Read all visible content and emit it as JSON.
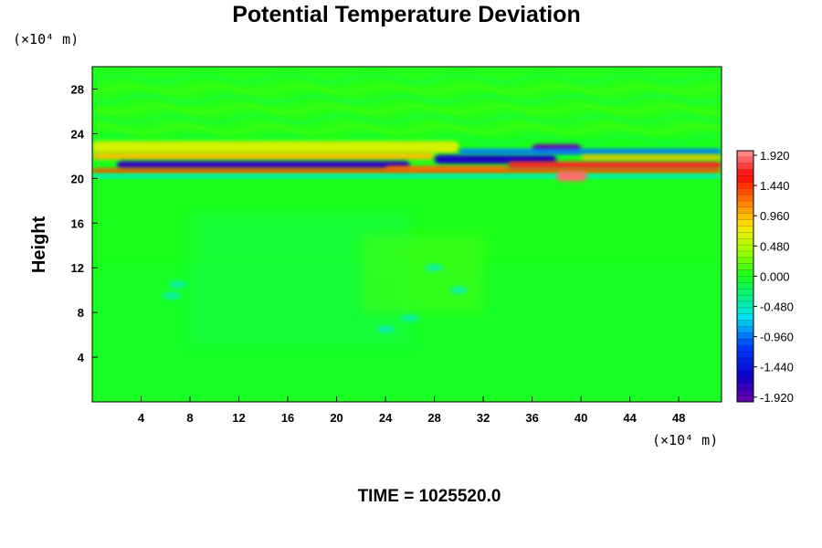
{
  "chart_data": {
    "type": "heatmap",
    "title": "Potential Temperature Deviation",
    "ylabel": "Height",
    "x_unit": "(×10⁴ m)",
    "y_unit": "(×10⁴ m)",
    "x_ticks": [
      4,
      8,
      12,
      16,
      20,
      24,
      28,
      32,
      36,
      40,
      44,
      48
    ],
    "y_ticks": [
      4,
      8,
      12,
      16,
      20,
      24,
      28
    ],
    "xlim": [
      0,
      51.5
    ],
    "ylim": [
      0,
      30
    ],
    "colorbar": {
      "ticks": [
        "1.920",
        "1.440",
        "0.960",
        "0.480",
        "0.000",
        "-0.480",
        "-0.960",
        "-1.440",
        "-1.920"
      ],
      "range": [
        -1.92,
        1.92
      ]
    },
    "time_label": "TIME = 1025520.0",
    "field_description_colors": {
      "background": "#1aff1a",
      "warm": "#ff2a00",
      "cold": "#1a00c8"
    }
  }
}
